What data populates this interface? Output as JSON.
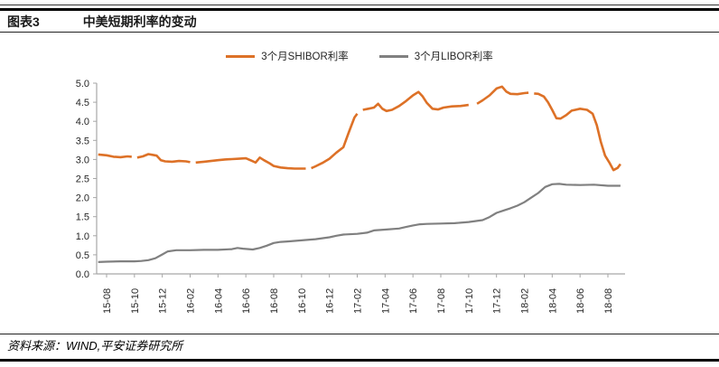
{
  "header": {
    "figure_label": "图表3",
    "title": "中美短期利率的变动"
  },
  "footer": {
    "source": "资料来源：WIND,平安证券研究所"
  },
  "chart_data": {
    "type": "line",
    "title": "中美短期利率的变动",
    "xlabel": "",
    "ylabel": "",
    "x_unit": "months since 2015-08",
    "x_tick_labels": [
      "15-08",
      "15-10",
      "15-12",
      "16-02",
      "16-04",
      "16-06",
      "16-08",
      "16-10",
      "16-12",
      "17-02",
      "17-04",
      "17-06",
      "17-08",
      "17-10",
      "17-12",
      "18-02",
      "18-04",
      "18-06",
      "18-08"
    ],
    "x_tick_positions": [
      0,
      2,
      4,
      6,
      8,
      10,
      12,
      14,
      16,
      18,
      20,
      22,
      24,
      26,
      28,
      30,
      32,
      34,
      36
    ],
    "ylim": [
      0.0,
      5.0
    ],
    "ytick_step": 0.5,
    "grid": false,
    "legend_position": "top-center",
    "axis_color": "#a6a6a6",
    "series": [
      {
        "name": "3个月SHIBOR利率",
        "data_name": "shibor-line",
        "color": "#dd7127",
        "points": [
          [
            -0.6,
            3.13
          ],
          [
            0,
            3.11
          ],
          [
            0.5,
            3.07
          ],
          [
            1,
            3.06
          ],
          [
            1.5,
            3.08
          ],
          [
            1.8,
            3.07
          ],
          null,
          [
            2.2,
            3.05
          ],
          [
            2.6,
            3.08
          ],
          [
            3,
            3.14
          ],
          [
            3.3,
            3.12
          ],
          [
            3.6,
            3.1
          ],
          [
            3.9,
            2.98
          ],
          [
            4.2,
            2.95
          ],
          [
            4.7,
            2.94
          ],
          [
            5.2,
            2.96
          ],
          [
            5.7,
            2.95
          ],
          [
            6,
            2.93
          ],
          null,
          [
            6.4,
            2.92
          ],
          [
            7,
            2.94
          ],
          [
            7.5,
            2.96
          ],
          [
            8,
            2.98
          ],
          [
            8.5,
            3.0
          ],
          [
            9,
            3.01
          ],
          [
            9.5,
            3.02
          ],
          [
            10,
            3.03
          ],
          [
            10.4,
            2.97
          ],
          [
            10.7,
            2.92
          ],
          [
            11,
            3.05
          ],
          [
            11.3,
            2.98
          ],
          [
            11.7,
            2.9
          ],
          [
            12,
            2.83
          ],
          [
            12.5,
            2.79
          ],
          [
            13,
            2.77
          ],
          [
            13.5,
            2.76
          ],
          [
            14,
            2.76
          ],
          [
            14.3,
            2.76
          ],
          null,
          [
            14.7,
            2.77
          ],
          [
            15,
            2.82
          ],
          [
            15.5,
            2.91
          ],
          [
            16,
            3.02
          ],
          [
            16.5,
            3.18
          ],
          [
            17,
            3.32
          ],
          [
            17.4,
            3.72
          ],
          [
            17.8,
            4.1
          ],
          [
            18,
            4.2
          ],
          null,
          [
            18.4,
            4.3
          ],
          [
            18.8,
            4.33
          ],
          [
            19.2,
            4.36
          ],
          [
            19.5,
            4.46
          ],
          [
            19.8,
            4.33
          ],
          [
            20.1,
            4.27
          ],
          [
            20.5,
            4.3
          ],
          [
            21,
            4.4
          ],
          [
            21.5,
            4.53
          ],
          [
            22,
            4.68
          ],
          [
            22.4,
            4.77
          ],
          [
            22.7,
            4.65
          ],
          [
            23,
            4.48
          ],
          [
            23.4,
            4.33
          ],
          [
            23.8,
            4.31
          ],
          [
            24.2,
            4.36
          ],
          [
            24.8,
            4.39
          ],
          [
            25.4,
            4.4
          ],
          [
            26,
            4.43
          ],
          null,
          [
            26.6,
            4.46
          ],
          [
            27,
            4.55
          ],
          [
            27.5,
            4.68
          ],
          [
            28,
            4.86
          ],
          [
            28.4,
            4.91
          ],
          [
            28.7,
            4.78
          ],
          [
            29,
            4.72
          ],
          [
            29.5,
            4.71
          ],
          [
            30,
            4.74
          ],
          [
            30.3,
            4.75
          ],
          null,
          [
            30.7,
            4.73
          ],
          [
            31,
            4.72
          ],
          [
            31.4,
            4.65
          ],
          [
            31.7,
            4.5
          ],
          [
            32,
            4.3
          ],
          [
            32.3,
            4.08
          ],
          [
            32.6,
            4.07
          ],
          [
            33,
            4.16
          ],
          [
            33.4,
            4.28
          ],
          [
            34,
            4.33
          ],
          [
            34.5,
            4.3
          ],
          [
            34.9,
            4.2
          ],
          [
            35.2,
            3.9
          ],
          [
            35.5,
            3.45
          ],
          [
            35.8,
            3.1
          ],
          [
            36.1,
            2.92
          ],
          [
            36.4,
            2.72
          ],
          [
            36.7,
            2.78
          ],
          [
            36.9,
            2.88
          ]
        ]
      },
      {
        "name": "3个月LIBOR利率",
        "data_name": "libor-line",
        "color": "#808080",
        "points": [
          [
            -0.6,
            0.31
          ],
          [
            0,
            0.32
          ],
          [
            1,
            0.33
          ],
          [
            2,
            0.33
          ],
          [
            2.5,
            0.34
          ],
          [
            3,
            0.36
          ],
          [
            3.5,
            0.41
          ],
          [
            4,
            0.51
          ],
          [
            4.4,
            0.59
          ],
          [
            5,
            0.62
          ],
          [
            6,
            0.62
          ],
          [
            7,
            0.63
          ],
          [
            8,
            0.63
          ],
          [
            9,
            0.65
          ],
          [
            9.4,
            0.68
          ],
          [
            9.8,
            0.66
          ],
          [
            10.5,
            0.64
          ],
          [
            11,
            0.68
          ],
          [
            11.5,
            0.74
          ],
          [
            12,
            0.81
          ],
          [
            12.5,
            0.84
          ],
          [
            13,
            0.85
          ],
          [
            14,
            0.88
          ],
          [
            15,
            0.91
          ],
          [
            16,
            0.96
          ],
          [
            16.5,
            1.0
          ],
          [
            17,
            1.03
          ],
          [
            18,
            1.05
          ],
          [
            18.7,
            1.08
          ],
          [
            19.2,
            1.14
          ],
          [
            20,
            1.16
          ],
          [
            21,
            1.19
          ],
          [
            21.5,
            1.23
          ],
          [
            22,
            1.27
          ],
          [
            22.5,
            1.3
          ],
          [
            23,
            1.31
          ],
          [
            24,
            1.32
          ],
          [
            25,
            1.33
          ],
          [
            26,
            1.36
          ],
          [
            27,
            1.41
          ],
          [
            27.5,
            1.49
          ],
          [
            28,
            1.6
          ],
          [
            28.5,
            1.66
          ],
          [
            29,
            1.72
          ],
          [
            29.5,
            1.79
          ],
          [
            30,
            1.88
          ],
          [
            30.5,
            2.0
          ],
          [
            31,
            2.12
          ],
          [
            31.5,
            2.28
          ],
          [
            32,
            2.35
          ],
          [
            32.5,
            2.36
          ],
          [
            33,
            2.34
          ],
          [
            34,
            2.33
          ],
          [
            35,
            2.34
          ],
          [
            36,
            2.31
          ],
          [
            36.9,
            2.31
          ]
        ]
      }
    ]
  }
}
